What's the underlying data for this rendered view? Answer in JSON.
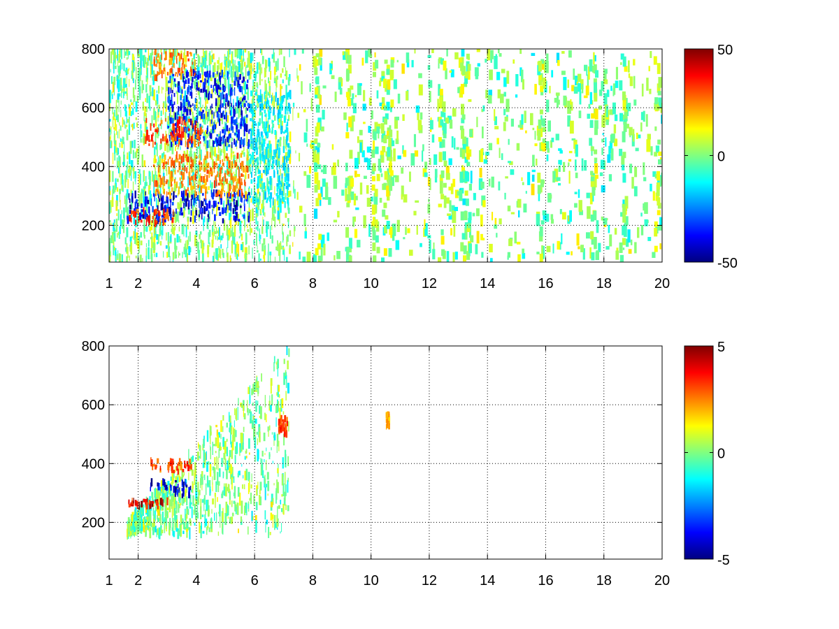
{
  "chart_data": [
    {
      "type": "heatmap",
      "title": "",
      "xlabel": "",
      "ylabel": "",
      "xlim": [
        1,
        20
      ],
      "ylim": [
        75,
        800
      ],
      "x_ticks": [
        1,
        2,
        4,
        6,
        8,
        10,
        12,
        14,
        16,
        18,
        20
      ],
      "y_ticks": [
        200,
        400,
        600,
        800
      ],
      "grid": true,
      "colormap": "jet",
      "colorbar": {
        "min": -50,
        "max": 50,
        "ticks": [
          50,
          0,
          -50
        ]
      },
      "features": [
        {
          "x_start": 1.6,
          "x_end": 5.8,
          "y_start": 215,
          "y_end": 310,
          "value": -40
        },
        {
          "x_start": 1.6,
          "x_end": 3.2,
          "y_start": 205,
          "y_end": 250,
          "value": 35
        },
        {
          "x_start": 2.5,
          "x_end": 5.8,
          "y_start": 300,
          "y_end": 440,
          "value": 25
        },
        {
          "x_start": 3.0,
          "x_end": 5.8,
          "y_start": 470,
          "y_end": 720,
          "value": -35
        },
        {
          "x_start": 2.2,
          "x_end": 4.2,
          "y_start": 470,
          "y_end": 560,
          "value": 30
        },
        {
          "x_start": 2.5,
          "x_end": 4.0,
          "y_start": 700,
          "y_end": 790,
          "value": 25
        },
        {
          "x_start": 5.8,
          "x_end": 7.2,
          "y_start": 280,
          "y_end": 650,
          "value": -15
        }
      ]
    },
    {
      "type": "heatmap",
      "title": "",
      "xlabel": "",
      "ylabel": "",
      "xlim": [
        1,
        20
      ],
      "ylim": [
        75,
        800
      ],
      "x_ticks": [
        1,
        2,
        4,
        6,
        8,
        10,
        12,
        14,
        16,
        18,
        20
      ],
      "y_ticks": [
        200,
        400,
        600,
        800
      ],
      "grid": true,
      "colormap": "jet",
      "colorbar": {
        "min": -5,
        "max": 5,
        "ticks": [
          5,
          0,
          -5
        ]
      },
      "features": [
        {
          "x_start": 1.6,
          "x_end": 3.0,
          "y_start": 255,
          "y_end": 275,
          "value": 4
        },
        {
          "x_start": 2.4,
          "x_end": 3.8,
          "y_start": 370,
          "y_end": 410,
          "value": 3
        },
        {
          "x_start": 2.4,
          "x_end": 3.8,
          "y_start": 290,
          "y_end": 340,
          "value": -4
        },
        {
          "x_start": 6.8,
          "x_end": 7.1,
          "y_start": 500,
          "y_end": 560,
          "value": 3
        },
        {
          "x_start": 10.5,
          "x_end": 10.6,
          "y_start": 520,
          "y_end": 570,
          "value": 2
        }
      ]
    }
  ]
}
